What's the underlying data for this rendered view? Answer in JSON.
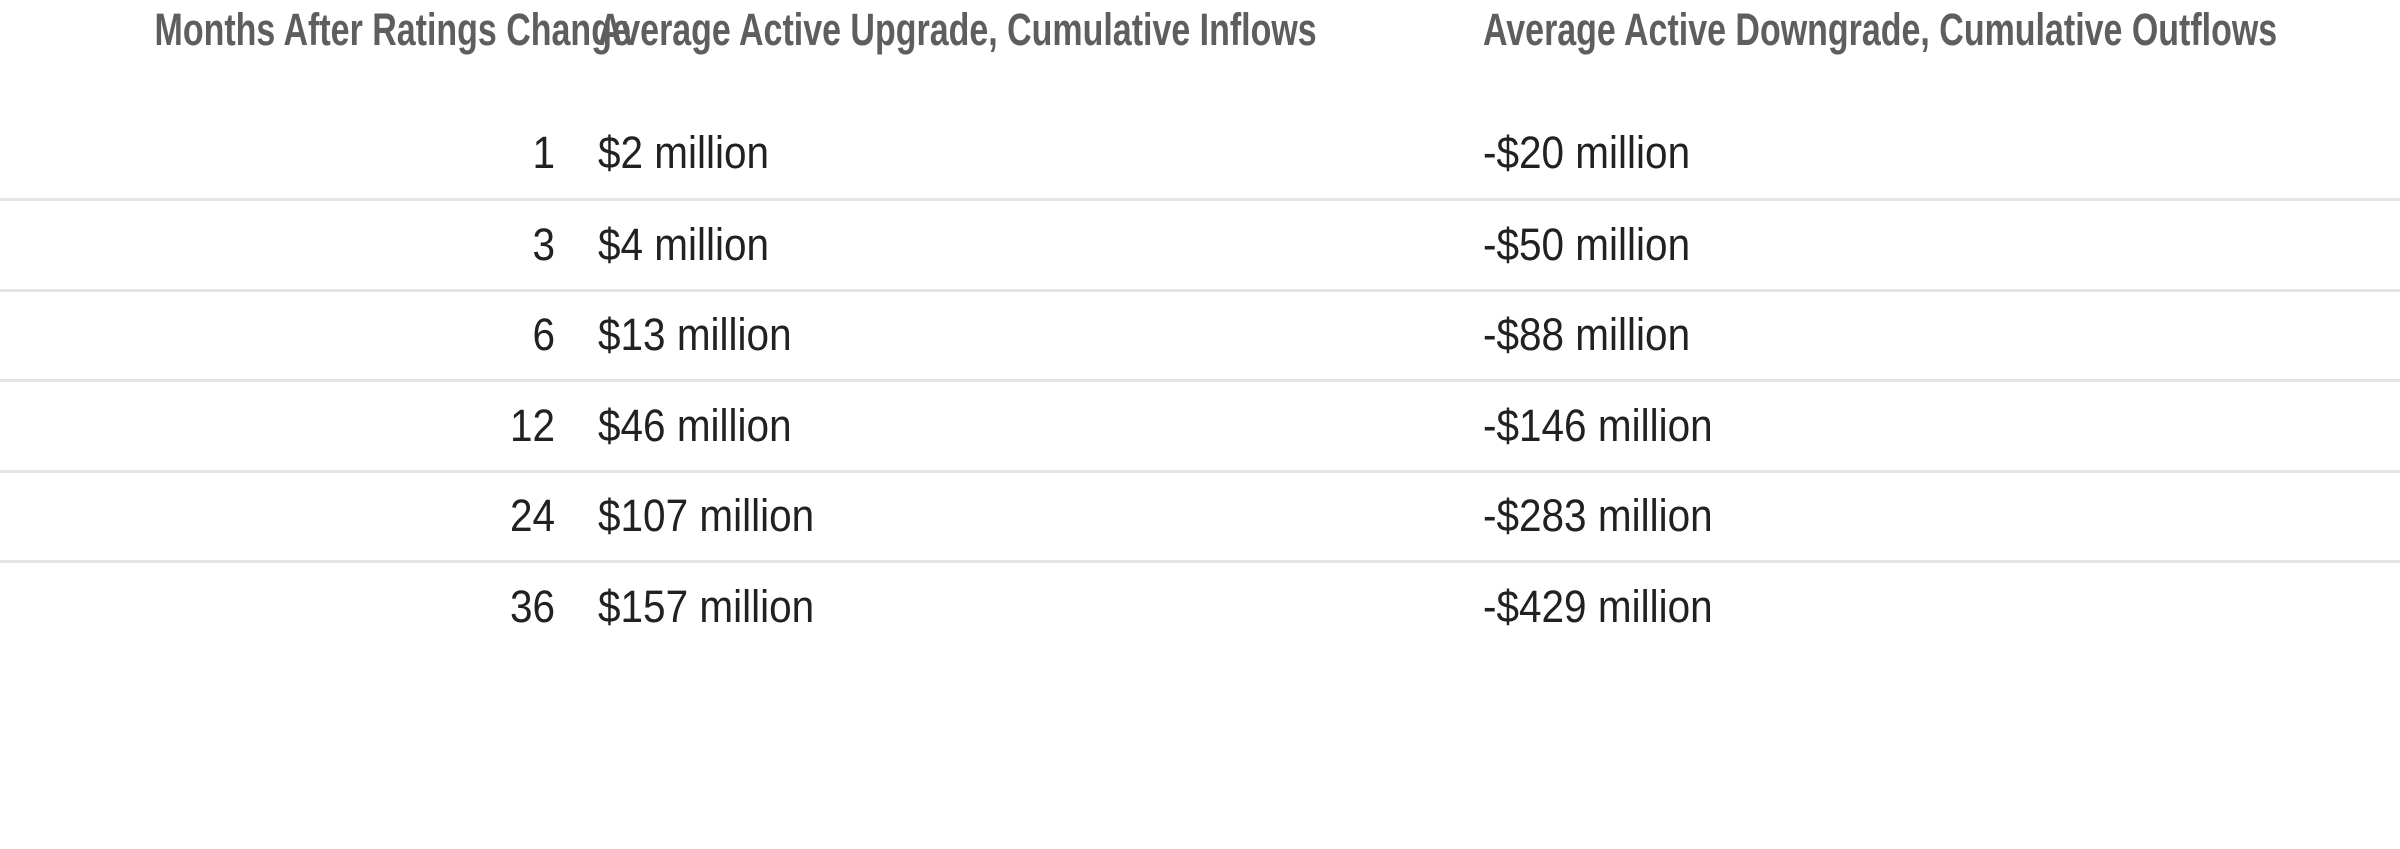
{
  "page": {
    "background": "#ffffff"
  },
  "colors": {
    "body-text": "#212121",
    "header-text": "#5e5e60",
    "divider": "#e4e4e4",
    "background": "#ffffff"
  },
  "chart_data": {
    "type": "table",
    "title": "",
    "columns": [
      "Months After Ratings Change",
      "Average Active Upgrade, Cumulative Inflows",
      "Average Active Downgrade, Cumulative Outflows"
    ],
    "rows": [
      [
        "1",
        "$2 million",
        "-$20 million"
      ],
      [
        "3",
        "$4 million",
        "-$50 million"
      ],
      [
        "6",
        "$13 million",
        "-$88 million"
      ],
      [
        "12",
        "$46 million",
        "-$146 million"
      ],
      [
        "24",
        "$107 million",
        "-$283 million"
      ],
      [
        "36",
        "$157 million",
        "-$429 million"
      ]
    ],
    "numeric": {
      "months_after_ratings_change": [
        1,
        3,
        6,
        12,
        24,
        36
      ],
      "avg_active_upgrade_cumulative_inflows_millions_usd": [
        2,
        4,
        13,
        46,
        107,
        157
      ],
      "avg_active_downgrade_cumulative_outflows_millions_usd": [
        -20,
        -50,
        -88,
        -146,
        -283,
        -429
      ]
    },
    "layout_hints": {
      "col_aligns": [
        "right",
        "left",
        "left"
      ],
      "row_dividers": true,
      "header_divider": false,
      "grid": "horizontal-only"
    }
  }
}
